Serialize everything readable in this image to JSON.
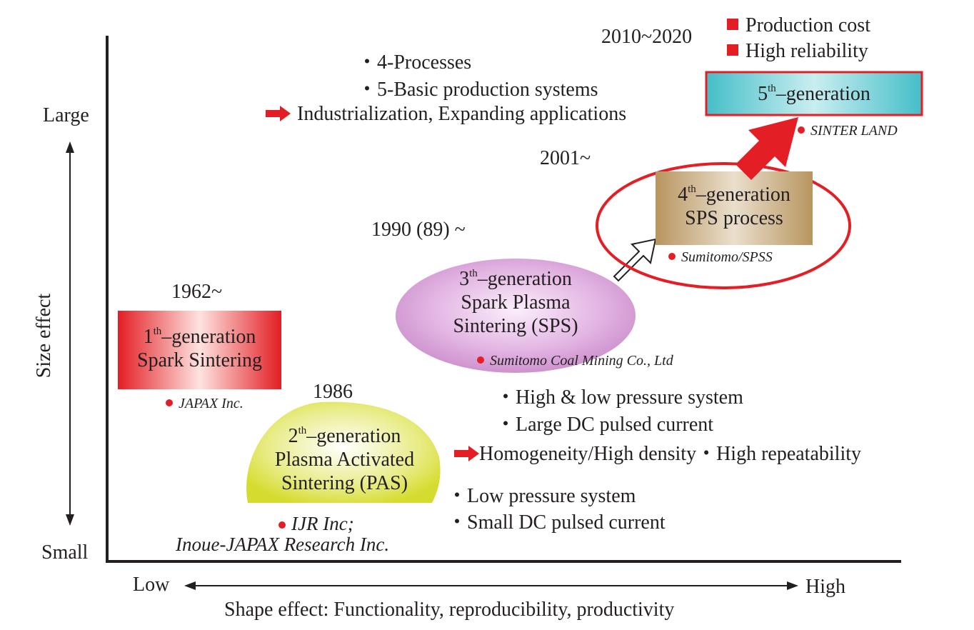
{
  "axes": {
    "y_top": "Large",
    "y_bottom": "Small",
    "y_title": "Size effect",
    "x_left": "Low",
    "x_right": "High",
    "x_title": "Shape effect: Functionality, reproducibility, productivity"
  },
  "gen1": {
    "year": "1962~",
    "ord": "1",
    "sup": "th",
    "suffix": "–generation",
    "line2": "Spark Sintering",
    "company": "JAPAX Inc."
  },
  "gen2": {
    "year": "1986",
    "ord": "2",
    "sup": "th",
    "suffix": "–generation",
    "line2": "Plasma Activated",
    "line3": "Sintering (PAS)",
    "company_line1": "IJR Inc;",
    "company_line2": "Inoue-JAPAX Research Inc."
  },
  "gen3": {
    "year": "1990 (89) ~",
    "ord": "3",
    "sup": "th",
    "suffix": "–generation",
    "line2": "Spark Plasma",
    "line3": "Sintering (SPS)",
    "company": "Sumitomo Coal Mining Co., Ltd"
  },
  "gen4": {
    "year": "2001~",
    "ord": "4",
    "sup": "th",
    "suffix": "–generation",
    "line2": "SPS process",
    "company": "Sumitomo/SPSS"
  },
  "gen5": {
    "year": "2010~2020",
    "ord": "5",
    "sup": "th",
    "suffix": "–generation",
    "company": "SINTER LAND"
  },
  "gen5_features": [
    "Production cost",
    "High reliability"
  ],
  "top_notes": {
    "bullets": [
      "・4-Processes",
      "・5-Basic production systems"
    ],
    "result": "Industrialization, Expanding applications"
  },
  "mid_notes": {
    "bullets": [
      "・High & low pressure system",
      "・Large DC pulsed current"
    ],
    "result": "Homogeneity/High density・High repeatability"
  },
  "low_notes": {
    "bullets": [
      "・Low pressure system",
      "・Small DC pulsed current"
    ]
  },
  "colors": {
    "accent_red": "#e31e24",
    "gen5_fill": "#6ccbd3",
    "gen4_fill": "#c2a173",
    "gen3_fill": "#d9a3d9",
    "gen2_fill": "#dde24a"
  }
}
